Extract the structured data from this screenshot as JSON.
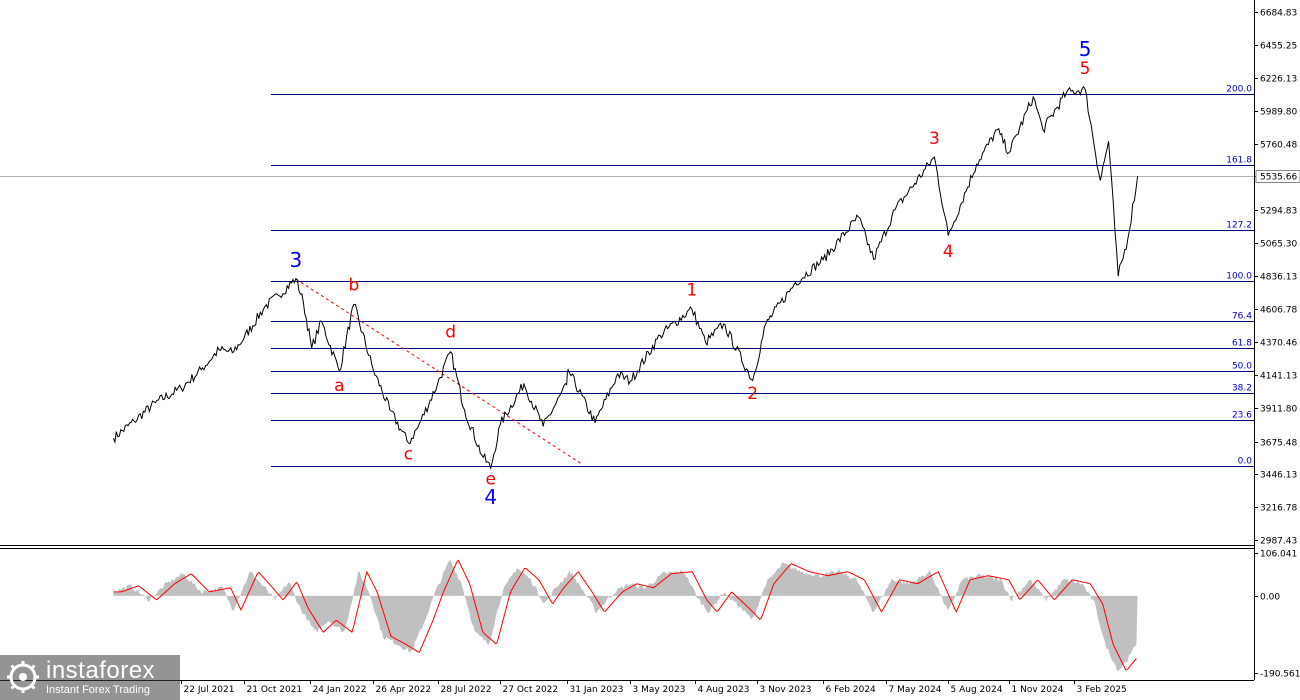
{
  "chart_data": [
    {
      "type": "line",
      "title": "",
      "xlabel": "",
      "ylabel": "",
      "ylim": [
        2987.43,
        6684.83
      ],
      "y_ticks": [
        "6684.83",
        "6455.25",
        "6226.13",
        "5989.80",
        "5760.48",
        "5535.66",
        "5294.83",
        "5065.30",
        "4836.13",
        "4606.78",
        "4370.46",
        "4141.13",
        "3911.80",
        "3675.48",
        "3446.13",
        "3216.78",
        "2987.43"
      ],
      "x_ticks": [
        "22 Jul 2021",
        "21 Oct 2021",
        "24 Jan 2022",
        "26 Apr 2022",
        "28 Jul 2022",
        "27 Oct 2022",
        "31 Jan 2023",
        "3 May 2023",
        "4 Aug 2023",
        "3 Nov 2023",
        "6 Feb 2024",
        "7 May 2024",
        "5 Aug 2024",
        "1 Nov 2024",
        "3 Feb 2025"
      ],
      "current_price": "5535.66",
      "series": [
        {
          "color": "#000000",
          "points": [
            [
              "2021-04-15",
              3700
            ],
            [
              "2021-05-15",
              3820
            ],
            [
              "2021-06-15",
              3950
            ],
            [
              "2021-07-22",
              4050
            ],
            [
              "2021-08-20",
              4180
            ],
            [
              "2021-09-15",
              4320
            ],
            [
              "2021-10-04",
              4300
            ],
            [
              "2021-10-21",
              4400
            ],
            [
              "2021-11-20",
              4620
            ],
            [
              "2021-12-10",
              4700
            ],
            [
              "2022-01-04",
              4818
            ],
            [
              "2022-01-15",
              4650
            ],
            [
              "2022-01-27",
              4330
            ],
            [
              "2022-02-10",
              4520
            ],
            [
              "2022-03-08",
              4170
            ],
            [
              "2022-03-29",
              4637
            ],
            [
              "2022-04-26",
              4180
            ],
            [
              "2022-05-20",
              3900
            ],
            [
              "2022-06-16",
              3666
            ],
            [
              "2022-06-30",
              3780
            ],
            [
              "2022-07-28",
              4080
            ],
            [
              "2022-08-16",
              4305
            ],
            [
              "2022-09-05",
              3900
            ],
            [
              "2022-09-30",
              3585
            ],
            [
              "2022-10-13",
              3491
            ],
            [
              "2022-10-27",
              3800
            ],
            [
              "2022-11-30",
              4080
            ],
            [
              "2022-12-28",
              3783
            ],
            [
              "2023-01-31",
              4076
            ],
            [
              "2023-02-02",
              4180
            ],
            [
              "2023-03-13",
              3808
            ],
            [
              "2023-04-15",
              4150
            ],
            [
              "2023-05-03",
              4100
            ],
            [
              "2023-06-15",
              4420
            ],
            [
              "2023-07-31",
              4607
            ],
            [
              "2023-08-20",
              4370
            ],
            [
              "2023-09-15",
              4500
            ],
            [
              "2023-10-27",
              4104
            ],
            [
              "2023-11-15",
              4500
            ],
            [
              "2023-12-28",
              4790
            ],
            [
              "2024-02-06",
              4950
            ],
            [
              "2024-03-28",
              5250
            ],
            [
              "2024-04-19",
              4953
            ],
            [
              "2024-05-20",
              5300
            ],
            [
              "2024-07-16",
              5669
            ],
            [
              "2024-08-05",
              5119
            ],
            [
              "2024-09-15",
              5620
            ],
            [
              "2024-10-15",
              5860
            ],
            [
              "2024-11-01",
              5700
            ],
            [
              "2024-12-06",
              6090
            ],
            [
              "2024-12-20",
              5860
            ],
            [
              "2025-01-23",
              6120
            ],
            [
              "2025-02-19",
              6144
            ],
            [
              "2025-03-13",
              5505
            ],
            [
              "2025-03-25",
              5780
            ],
            [
              "2025-04-08",
              4835
            ],
            [
              "2025-04-22",
              5100
            ],
            [
              "2025-05-06",
              5535.66
            ]
          ]
        }
      ],
      "fibonacci_levels": [
        {
          "label": "200.0",
          "value": 6110
        },
        {
          "label": "161.8",
          "value": 5610
        },
        {
          "label": "127.2",
          "value": 5155
        },
        {
          "label": "100.0",
          "value": 4800
        },
        {
          "label": "76.4",
          "value": 4520
        },
        {
          "label": "61.8",
          "value": 4330
        },
        {
          "label": "50.0",
          "value": 4170
        },
        {
          "label": "38.2",
          "value": 4015
        },
        {
          "label": "23.6",
          "value": 3830
        },
        {
          "label": "0.0",
          "value": 3505
        }
      ],
      "trend_line": [
        [
          "2022-01-04",
          4815
        ],
        [
          "2023-02-20",
          3525
        ]
      ],
      "wave_labels": [
        {
          "text": "3",
          "color": "#0000ff",
          "x": "2022-01-04",
          "y": 4900
        },
        {
          "text": "b",
          "color": "#ff0000",
          "x": "2022-03-29",
          "y": 4735
        },
        {
          "text": "a",
          "color": "#ff0000",
          "x": "2022-03-08",
          "y": 4030
        },
        {
          "text": "c",
          "color": "#ff0000",
          "x": "2022-06-16",
          "y": 3550
        },
        {
          "text": "d",
          "color": "#ff0000",
          "x": "2022-08-16",
          "y": 4405
        },
        {
          "text": "e",
          "color": "#ff0000",
          "x": "2022-10-13",
          "y": 3375
        },
        {
          "text": "4",
          "color": "#0000ff",
          "x": "2022-10-13",
          "y": 3240
        },
        {
          "text": "1",
          "color": "#ff0000",
          "x": "2023-07-31",
          "y": 4700
        },
        {
          "text": "2",
          "color": "#ff0000",
          "x": "2023-10-27",
          "y": 3975
        },
        {
          "text": "3",
          "color": "#ff0000",
          "x": "2024-07-16",
          "y": 5760
        },
        {
          "text": "4",
          "color": "#ff0000",
          "x": "2024-08-05",
          "y": 4970
        },
        {
          "text": "5",
          "color": "#ff0000",
          "x": "2025-02-19",
          "y": 6250
        },
        {
          "text": "5",
          "color": "#0000ff",
          "x": "2025-02-19",
          "y": 6375
        }
      ]
    },
    {
      "type": "area",
      "title": "",
      "ylim": [
        -190.561,
        106.041
      ],
      "y_ticks": [
        "106.041",
        "0.00",
        "-190.561"
      ],
      "histogram_color": "#c0c0c0",
      "signal_color": "#ff0000",
      "series": [
        {
          "name": "",
          "points": [
            [
              "2021-04-15",
              10
            ],
            [
              "2021-05-10",
              25
            ],
            [
              "2021-06-05",
              -10
            ],
            [
              "2021-07-01",
              30
            ],
            [
              "2021-07-25",
              55
            ],
            [
              "2021-08-20",
              10
            ],
            [
              "2021-09-20",
              20
            ],
            [
              "2021-10-05",
              -35
            ],
            [
              "2021-10-30",
              60
            ],
            [
              "2021-11-20",
              20
            ],
            [
              "2021-12-05",
              -10
            ],
            [
              "2021-12-25",
              35
            ],
            [
              "2022-01-10",
              -30
            ],
            [
              "2022-02-01",
              -90
            ],
            [
              "2022-02-20",
              -60
            ],
            [
              "2022-03-15",
              -90
            ],
            [
              "2022-04-05",
              60
            ],
            [
              "2022-04-20",
              10
            ],
            [
              "2022-05-10",
              -100
            ],
            [
              "2022-06-01",
              -120
            ],
            [
              "2022-06-20",
              -140
            ],
            [
              "2022-07-10",
              -60
            ],
            [
              "2022-07-25",
              10
            ],
            [
              "2022-08-15",
              90
            ],
            [
              "2022-09-01",
              30
            ],
            [
              "2022-09-20",
              -90
            ],
            [
              "2022-10-10",
              -120
            ],
            [
              "2022-10-30",
              10
            ],
            [
              "2022-11-20",
              70
            ],
            [
              "2022-12-10",
              40
            ],
            [
              "2022-12-30",
              -20
            ],
            [
              "2023-01-15",
              20
            ],
            [
              "2023-02-05",
              60
            ],
            [
              "2023-02-25",
              10
            ],
            [
              "2023-03-15",
              -40
            ],
            [
              "2023-04-10",
              10
            ],
            [
              "2023-05-01",
              30
            ],
            [
              "2023-05-25",
              20
            ],
            [
              "2023-06-20",
              55
            ],
            [
              "2023-07-20",
              60
            ],
            [
              "2023-08-10",
              -10
            ],
            [
              "2023-08-25",
              -40
            ],
            [
              "2023-09-15",
              10
            ],
            [
              "2023-10-10",
              -30
            ],
            [
              "2023-10-27",
              -60
            ],
            [
              "2023-11-15",
              30
            ],
            [
              "2023-12-10",
              80
            ],
            [
              "2024-01-05",
              60
            ],
            [
              "2024-02-01",
              50
            ],
            [
              "2024-03-01",
              60
            ],
            [
              "2024-03-25",
              40
            ],
            [
              "2024-04-19",
              -40
            ],
            [
              "2024-05-15",
              40
            ],
            [
              "2024-06-10",
              30
            ],
            [
              "2024-07-10",
              60
            ],
            [
              "2024-08-05",
              -40
            ],
            [
              "2024-08-25",
              40
            ],
            [
              "2024-09-20",
              50
            ],
            [
              "2024-10-20",
              40
            ],
            [
              "2024-11-05",
              -10
            ],
            [
              "2024-12-01",
              40
            ],
            [
              "2024-12-25",
              -10
            ],
            [
              "2025-01-20",
              40
            ],
            [
              "2025-02-15",
              30
            ],
            [
              "2025-03-05",
              -20
            ],
            [
              "2025-03-20",
              -120
            ],
            [
              "2025-04-08",
              -185
            ],
            [
              "2025-04-25",
              -150
            ],
            [
              "2025-05-06",
              -110
            ]
          ]
        }
      ]
    }
  ],
  "branding": {
    "name": "instaforex",
    "tagline": "Instant Forex Trading"
  }
}
